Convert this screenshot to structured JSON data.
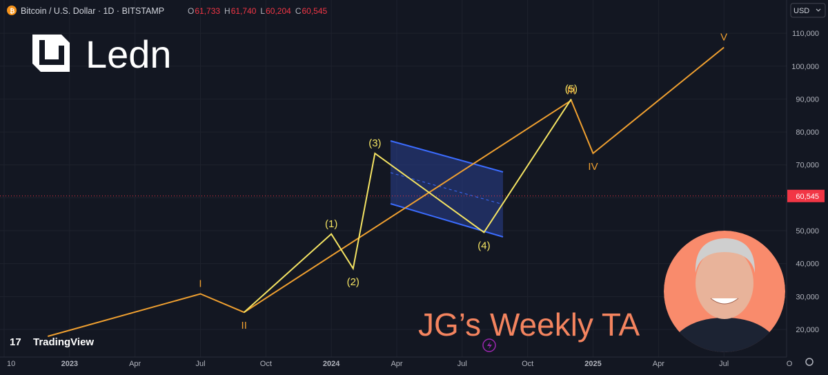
{
  "header": {
    "symbol": "Bitcoin / U.S. Dollar · 1D · BITSTAMP",
    "ohlc": [
      {
        "key": "O",
        "value": "61,733"
      },
      {
        "key": "H",
        "value": "61,740"
      },
      {
        "key": "L",
        "value": "60,204"
      },
      {
        "key": "C",
        "value": "60,545"
      }
    ],
    "currency": "USD"
  },
  "branding": {
    "logo": "Ledn",
    "watermark": "TradingView",
    "headline": "JG’s Weekly TA"
  },
  "chart_data": {
    "type": "line",
    "xlim": [
      "2022-10",
      "2025-10"
    ],
    "xticks": [
      {
        "value": "2022-10",
        "label": "10"
      },
      {
        "value": "2023-01",
        "label": "2023"
      },
      {
        "value": "2023-04",
        "label": "Apr"
      },
      {
        "value": "2023-07",
        "label": "Jul"
      },
      {
        "value": "2023-10",
        "label": "Oct"
      },
      {
        "value": "2024-01",
        "label": "2024"
      },
      {
        "value": "2024-04",
        "label": "Apr"
      },
      {
        "value": "2024-07",
        "label": "Jul"
      },
      {
        "value": "2024-10",
        "label": "Oct"
      },
      {
        "value": "2025-01",
        "label": "2025"
      },
      {
        "value": "2025-04",
        "label": "Apr"
      },
      {
        "value": "2025-07",
        "label": "Jul"
      },
      {
        "value": "2025-10",
        "label": "O"
      }
    ],
    "ylim": [
      11600,
      120100
    ],
    "yticks": [
      {
        "value": 20000,
        "label": "20,000"
      },
      {
        "value": 30000,
        "label": "30,000"
      },
      {
        "value": 40000,
        "label": "40,000"
      },
      {
        "value": 50000,
        "label": "50,000"
      },
      {
        "value": 60000,
        "label": "60,000"
      },
      {
        "value": 70000,
        "label": "70,000"
      },
      {
        "value": 80000,
        "label": "80,000"
      },
      {
        "value": 90000,
        "label": "90,000"
      },
      {
        "value": 100000,
        "label": "100,000"
      },
      {
        "value": 110000,
        "label": "110,000"
      }
    ],
    "grid": true,
    "last_price": {
      "value": 60545,
      "label": "60,545",
      "color": "#f23645"
    },
    "series": [
      {
        "color": "#f0a030",
        "x": [
          "2022-12",
          "2023-07",
          "2023-09",
          "2024-12",
          "2025-01",
          "2025-07"
        ],
        "values": [
          17900,
          30800,
          25200,
          89600,
          73500,
          105700
        ],
        "point_labels": [
          null,
          "I",
          "II",
          "III",
          "IV",
          "V"
        ]
      },
      {
        "color": "#f5e463",
        "x": [
          "2023-09",
          "2024-01",
          "2024-02",
          "2024-03",
          "2024-08",
          "2024-12"
        ],
        "values": [
          25200,
          49000,
          38500,
          73500,
          49500,
          90000
        ],
        "point_labels": [
          null,
          "(1)",
          "(2)",
          "(3)",
          "(4)",
          "(5)"
        ]
      }
    ]
  }
}
